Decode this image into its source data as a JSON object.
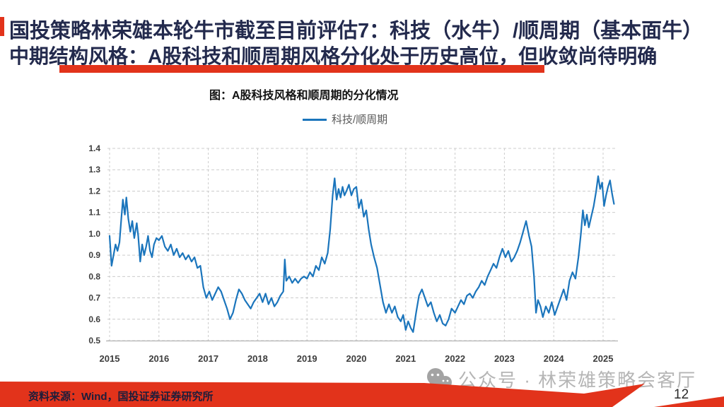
{
  "header": {
    "title_line1": "国投策略林荣雄本轮牛市截至目前评估7：科技（水牛）/顺周期（基本面牛）",
    "title_line2": "中期结构风格：A股科技和顺周期风格分化处于历史高位，但收敛尚待明确",
    "title_color": "#232A4D",
    "accent_color": "#E2331B"
  },
  "chart": {
    "title": "图：A股科技风格和顺周期的分化情况",
    "legend_label": "科技/顺周期",
    "line_color": "#1B75BC",
    "grid_color": "#cccccc",
    "axis_color": "#b3b3b3",
    "tick_color": "#3d3d3d"
  },
  "chart_data": {
    "type": "line",
    "title": "图：A股科技风格和顺周期的分化情况",
    "legend": [
      "科技/顺周期"
    ],
    "legend_position": "top",
    "grid": true,
    "xlim": [
      2015,
      2025
    ],
    "ylim": [
      0.5,
      1.4
    ],
    "x_ticks": [
      2015,
      2016,
      2017,
      2018,
      2019,
      2020,
      2021,
      2022,
      2023,
      2024,
      2025
    ],
    "y_ticks": [
      0.5,
      0.6,
      0.7,
      0.8,
      0.9,
      1.0,
      1.1,
      1.2,
      1.3,
      1.4
    ],
    "series": [
      {
        "name": "科技/顺周期",
        "x": [
          2015.0,
          2015.04,
          2015.08,
          2015.12,
          2015.16,
          2015.2,
          2015.24,
          2015.27,
          2015.31,
          2015.34,
          2015.38,
          2015.42,
          2015.46,
          2015.5,
          2015.55,
          2015.58,
          2015.62,
          2015.66,
          2015.7,
          2015.74,
          2015.78,
          2015.82,
          2015.86,
          2015.9,
          2015.95,
          2016.0,
          2016.06,
          2016.12,
          2016.18,
          2016.24,
          2016.3,
          2016.36,
          2016.42,
          2016.48,
          2016.54,
          2016.6,
          2016.66,
          2016.72,
          2016.78,
          2016.84,
          2016.9,
          2016.96,
          2017.02,
          2017.08,
          2017.14,
          2017.2,
          2017.26,
          2017.32,
          2017.38,
          2017.44,
          2017.5,
          2017.56,
          2017.62,
          2017.68,
          2017.74,
          2017.8,
          2017.86,
          2017.92,
          2017.98,
          2018.04,
          2018.1,
          2018.16,
          2018.22,
          2018.28,
          2018.34,
          2018.4,
          2018.46,
          2018.52,
          2018.55,
          2018.58,
          2018.64,
          2018.7,
          2018.76,
          2018.82,
          2018.88,
          2018.94,
          2019.0,
          2019.06,
          2019.12,
          2019.18,
          2019.24,
          2019.3,
          2019.36,
          2019.42,
          2019.47,
          2019.52,
          2019.56,
          2019.6,
          2019.64,
          2019.68,
          2019.72,
          2019.76,
          2019.8,
          2019.85,
          2019.9,
          2019.95,
          2020.0,
          2020.05,
          2020.1,
          2020.15,
          2020.2,
          2020.25,
          2020.3,
          2020.36,
          2020.42,
          2020.48,
          2020.54,
          2020.6,
          2020.66,
          2020.72,
          2020.78,
          2020.84,
          2020.9,
          2020.95,
          2021.0,
          2021.05,
          2021.1,
          2021.15,
          2021.21,
          2021.27,
          2021.33,
          2021.39,
          2021.45,
          2021.51,
          2021.57,
          2021.63,
          2021.69,
          2021.75,
          2021.81,
          2021.87,
          2021.93,
          2022.0,
          2022.06,
          2022.12,
          2022.18,
          2022.24,
          2022.3,
          2022.36,
          2022.42,
          2022.48,
          2022.54,
          2022.6,
          2022.66,
          2022.72,
          2022.78,
          2022.84,
          2022.9,
          2022.96,
          2023.02,
          2023.08,
          2023.14,
          2023.2,
          2023.26,
          2023.32,
          2023.38,
          2023.44,
          2023.5,
          2023.55,
          2023.6,
          2023.64,
          2023.68,
          2023.73,
          2023.78,
          2023.84,
          2023.9,
          2023.96,
          2024.02,
          2024.08,
          2024.14,
          2024.2,
          2024.26,
          2024.32,
          2024.38,
          2024.44,
          2024.5,
          2024.55,
          2024.59,
          2024.63,
          2024.67,
          2024.71,
          2024.76,
          2024.81,
          2024.86,
          2024.9,
          2024.94,
          2024.98,
          2025.02,
          2025.06,
          2025.1,
          2025.14,
          2025.18,
          2025.22
        ],
        "y": [
          0.99,
          0.85,
          0.9,
          0.95,
          0.92,
          0.96,
          1.08,
          1.16,
          1.09,
          1.17,
          1.07,
          1.01,
          1.06,
          0.98,
          1.05,
          0.99,
          0.87,
          0.95,
          0.9,
          0.94,
          0.99,
          0.92,
          0.89,
          0.95,
          0.98,
          0.97,
          0.99,
          0.94,
          0.92,
          0.95,
          0.9,
          0.93,
          0.89,
          0.91,
          0.88,
          0.9,
          0.87,
          0.89,
          0.84,
          0.85,
          0.75,
          0.7,
          0.73,
          0.69,
          0.72,
          0.75,
          0.73,
          0.69,
          0.65,
          0.6,
          0.63,
          0.69,
          0.74,
          0.72,
          0.69,
          0.67,
          0.65,
          0.68,
          0.7,
          0.72,
          0.68,
          0.72,
          0.67,
          0.7,
          0.66,
          0.68,
          0.71,
          0.73,
          0.88,
          0.78,
          0.8,
          0.77,
          0.79,
          0.77,
          0.79,
          0.8,
          0.79,
          0.82,
          0.8,
          0.85,
          0.83,
          0.89,
          0.86,
          0.91,
          1.02,
          1.18,
          1.26,
          1.16,
          1.21,
          1.17,
          1.22,
          1.18,
          1.2,
          1.23,
          1.18,
          1.21,
          1.22,
          1.12,
          1.16,
          1.08,
          1.11,
          1.02,
          0.95,
          0.89,
          0.84,
          0.76,
          0.68,
          0.63,
          0.67,
          0.63,
          0.66,
          0.61,
          0.59,
          0.62,
          0.55,
          0.59,
          0.56,
          0.54,
          0.63,
          0.71,
          0.74,
          0.7,
          0.66,
          0.68,
          0.63,
          0.59,
          0.62,
          0.58,
          0.57,
          0.6,
          0.65,
          0.63,
          0.66,
          0.69,
          0.67,
          0.71,
          0.72,
          0.7,
          0.73,
          0.75,
          0.78,
          0.76,
          0.8,
          0.83,
          0.86,
          0.84,
          0.89,
          0.93,
          0.89,
          0.92,
          0.87,
          0.89,
          0.92,
          0.96,
          1.01,
          1.06,
          0.99,
          0.94,
          0.8,
          0.63,
          0.69,
          0.66,
          0.61,
          0.66,
          0.63,
          0.68,
          0.62,
          0.66,
          0.7,
          0.74,
          0.69,
          0.78,
          0.82,
          0.79,
          0.89,
          1.0,
          1.11,
          1.04,
          1.09,
          1.03,
          1.08,
          1.13,
          1.2,
          1.27,
          1.21,
          1.24,
          1.13,
          1.18,
          1.22,
          1.25,
          1.19,
          1.14
        ]
      }
    ]
  },
  "watermark": {
    "text": "公众号 · 林荣雄策略会客厅",
    "icon": "wechat-icon",
    "color": "#b5b5b5"
  },
  "footer": {
    "source_text": "资料来源：Wind，国投证券证券研究所",
    "band_color": "#E2331B",
    "page_number": "12"
  }
}
